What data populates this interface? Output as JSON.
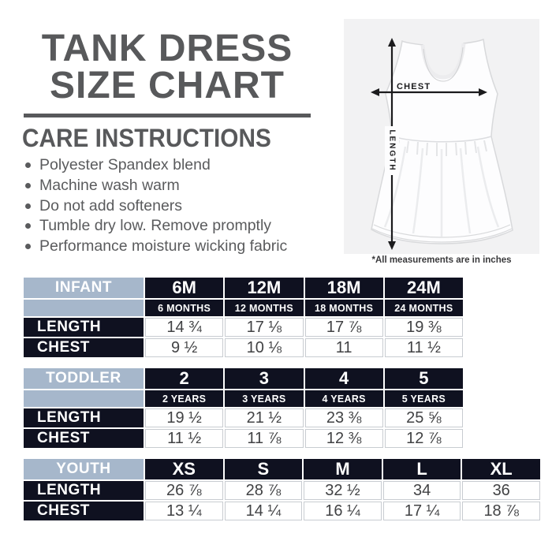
{
  "header": {
    "title_line1": "TANK DRESS",
    "title_line2": "SIZE CHART"
  },
  "care": {
    "heading": "CARE INSTRUCTIONS",
    "items": [
      "Polyester Spandex blend",
      "Machine wash warm",
      "Do not add softeners",
      "Tumble dry low. Remove promptly",
      "Performance moisture wicking fabric"
    ]
  },
  "diagram": {
    "chest_label": "CHEST",
    "length_label": "LENGTH",
    "footnote": "*All measurements are in inches"
  },
  "tables": [
    {
      "name": "INFANT",
      "columns": [
        "6M",
        "12M",
        "18M",
        "24M"
      ],
      "sub_columns": [
        "6 MONTHS",
        "12 MONTHS",
        "18 MONTHS",
        "24 MONTHS"
      ],
      "rows": [
        {
          "label": "LENGTH",
          "values": [
            "14 ¾",
            "17 ⅛",
            "17 ⅞",
            "19 ⅜"
          ]
        },
        {
          "label": "CHEST",
          "values": [
            "9 ½",
            "10 ⅛",
            "11",
            "11 ½"
          ]
        }
      ]
    },
    {
      "name": "TODDLER",
      "columns": [
        "2",
        "3",
        "4",
        "5"
      ],
      "sub_columns": [
        "2 YEARS",
        "3 YEARS",
        "4 YEARS",
        "5 YEARS"
      ],
      "rows": [
        {
          "label": "LENGTH",
          "values": [
            "19 ½",
            "21 ½",
            "23 ⅜",
            "25 ⅝"
          ]
        },
        {
          "label": "CHEST",
          "values": [
            "11 ½",
            "11 ⅞",
            "12 ⅜",
            "12 ⅞"
          ]
        }
      ]
    },
    {
      "name": "YOUTH",
      "columns": [
        "XS",
        "S",
        "M",
        "L",
        "XL"
      ],
      "sub_columns": null,
      "rows": [
        {
          "label": "LENGTH",
          "values": [
            "26 ⅞",
            "28 ⅞",
            "32 ½",
            "34",
            "36"
          ]
        },
        {
          "label": "CHEST",
          "values": [
            "13 ¼",
            "14 ¼",
            "16 ¼",
            "17 ¼",
            "18 ⅞"
          ]
        }
      ]
    }
  ],
  "colors": {
    "heading_gray": "#58595b",
    "body_gray": "#5a5b5d",
    "table_navy": "#0f1120",
    "table_blue": "#a6b7cb",
    "value_text": "#414244",
    "grid_border": "#c8ccd1",
    "photo_bg": "#f2f2f3",
    "arrow_black": "#1b1b1d",
    "footnote_color": "#39393b"
  }
}
